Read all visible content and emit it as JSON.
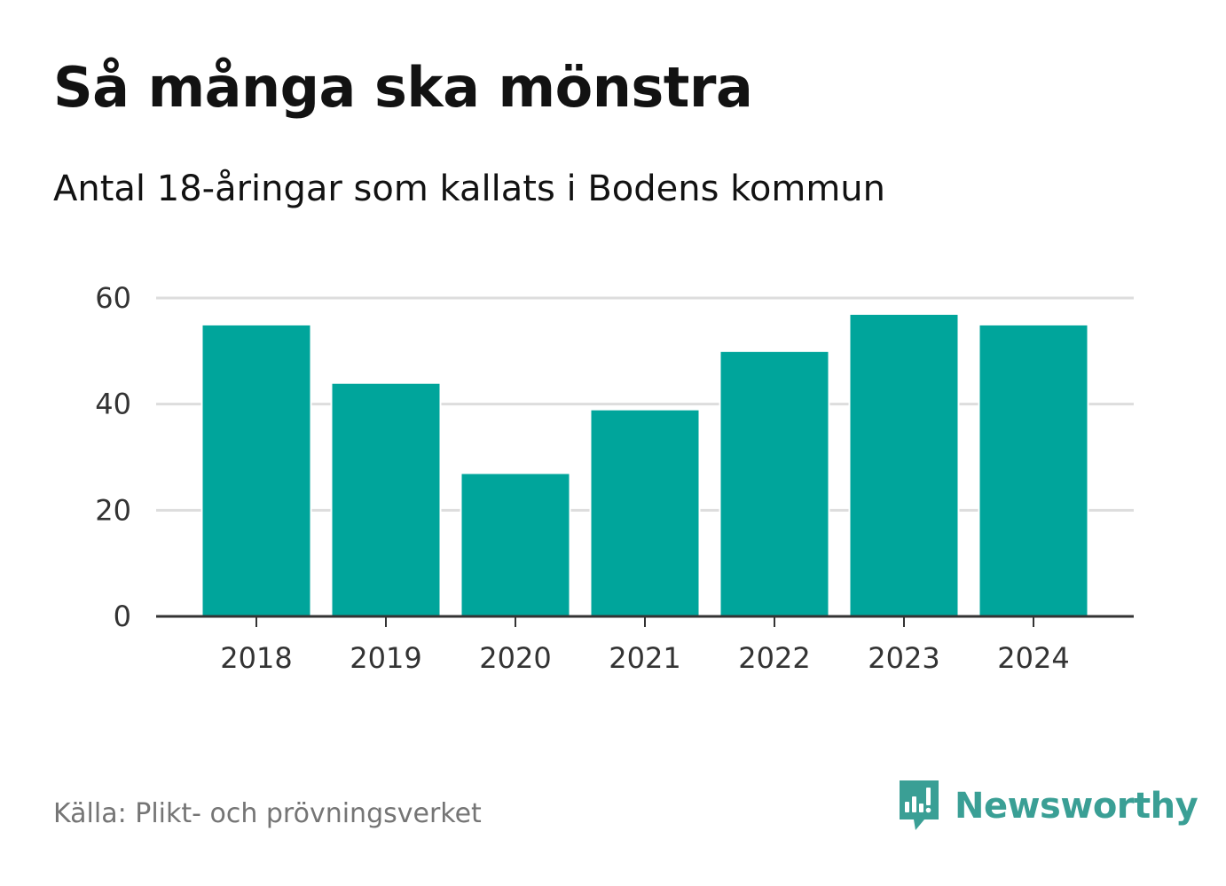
{
  "header": {
    "title": "Så många ska mönstra",
    "subtitle": "Antal 18-åringar som kallats i Bodens kommun"
  },
  "footer": {
    "source": "Källa: Plikt- och prövningsverket",
    "brand": "Newsworthy",
    "brand_icon": "newsworthy-logo-icon"
  },
  "colors": {
    "bar": "#00a59b",
    "grid": "#dddddd",
    "axis": "#333333",
    "brand": "#3a9f95"
  },
  "chart_data": {
    "type": "bar",
    "title": "Så många ska mönstra",
    "subtitle": "Antal 18-åringar som kallats i Bodens kommun",
    "categories": [
      "2018",
      "2019",
      "2020",
      "2021",
      "2022",
      "2023",
      "2024"
    ],
    "values": [
      55,
      44,
      27,
      39,
      50,
      57,
      55
    ],
    "xlabel": "",
    "ylabel": "",
    "ylim": [
      0,
      60
    ],
    "yticks": [
      "0",
      "20",
      "40",
      "60"
    ],
    "grid": true,
    "legend": "none"
  }
}
